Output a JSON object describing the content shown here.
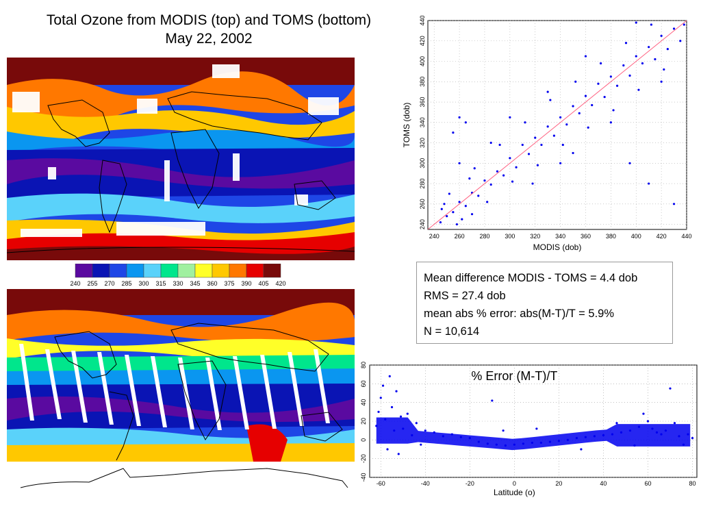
{
  "title": {
    "line1": "Total Ozone from MODIS (top) and TOMS (bottom)",
    "line2": "May 22, 2002"
  },
  "colorbar": {
    "ticks": [
      "240",
      "255",
      "270",
      "285",
      "300",
      "315",
      "330",
      "345",
      "360",
      "375",
      "390",
      "405",
      "420"
    ],
    "colors": [
      "#5a0aa0",
      "#0a14b4",
      "#1e46e6",
      "#0a96f0",
      "#5ad2fa",
      "#00e68c",
      "#a0f0a0",
      "#ffff28",
      "#ffc800",
      "#ff7800",
      "#e60000",
      "#780a0a"
    ]
  },
  "stats": {
    "line1": "Mean difference MODIS - TOMS = 4.4 dob",
    "line2": "RMS = 27.4 dob",
    "line3": "mean abs % error: abs(M-T)/T = 5.9%",
    "line4": "N = 10,614"
  },
  "chart_data": [
    {
      "type": "scatter",
      "title": "",
      "xlabel": "MODIS (dob)",
      "ylabel": "TOMS (dob)",
      "xlim": [
        235,
        440
      ],
      "ylim": [
        235,
        440
      ],
      "xticks": [
        240,
        260,
        280,
        300,
        320,
        340,
        360,
        380,
        400,
        420,
        440
      ],
      "yticks": [
        240,
        260,
        280,
        300,
        320,
        340,
        360,
        380,
        400,
        420,
        440
      ],
      "grid": true,
      "color": "#0000ee",
      "fit_line_color": "#ff6080",
      "points": [
        [
          245,
          242
        ],
        [
          250,
          248
        ],
        [
          255,
          252
        ],
        [
          260,
          262
        ],
        [
          265,
          258
        ],
        [
          270,
          271
        ],
        [
          275,
          268
        ],
        [
          280,
          283
        ],
        [
          285,
          279
        ],
        [
          290,
          292
        ],
        [
          295,
          288
        ],
        [
          300,
          305
        ],
        [
          305,
          296
        ],
        [
          310,
          318
        ],
        [
          315,
          309
        ],
        [
          320,
          325
        ],
        [
          325,
          318
        ],
        [
          330,
          336
        ],
        [
          335,
          327
        ],
        [
          340,
          345
        ],
        [
          345,
          338
        ],
        [
          350,
          356
        ],
        [
          355,
          349
        ],
        [
          360,
          366
        ],
        [
          365,
          357
        ],
        [
          370,
          378
        ],
        [
          375,
          365
        ],
        [
          380,
          385
        ],
        [
          385,
          376
        ],
        [
          390,
          396
        ],
        [
          395,
          386
        ],
        [
          400,
          405
        ],
        [
          405,
          398
        ],
        [
          410,
          414
        ],
        [
          415,
          402
        ],
        [
          420,
          425
        ],
        [
          425,
          412
        ],
        [
          430,
          432
        ],
        [
          435,
          420
        ],
        [
          438,
          436
        ],
        [
          252,
          270
        ],
        [
          262,
          245
        ],
        [
          272,
          295
        ],
        [
          282,
          262
        ],
        [
          292,
          318
        ],
        [
          302,
          282
        ],
        [
          312,
          340
        ],
        [
          322,
          298
        ],
        [
          332,
          362
        ],
        [
          342,
          318
        ],
        [
          352,
          380
        ],
        [
          362,
          335
        ],
        [
          372,
          398
        ],
        [
          382,
          352
        ],
        [
          392,
          418
        ],
        [
          402,
          372
        ],
        [
          412,
          436
        ],
        [
          422,
          392
        ],
        [
          300,
          345
        ],
        [
          318,
          280
        ],
        [
          260,
          300
        ],
        [
          270,
          250
        ],
        [
          340,
          300
        ],
        [
          360,
          405
        ],
        [
          380,
          340
        ],
        [
          400,
          438
        ],
        [
          420,
          380
        ],
        [
          285,
          320
        ],
        [
          330,
          370
        ],
        [
          350,
          310
        ],
        [
          430,
          260
        ],
        [
          410,
          280
        ],
        [
          395,
          300
        ],
        [
          265,
          340
        ],
        [
          260,
          345
        ],
        [
          255,
          330
        ],
        [
          248,
          260
        ],
        [
          246,
          255
        ],
        [
          258,
          240
        ],
        [
          268,
          285
        ]
      ]
    },
    {
      "type": "scatter",
      "title": "% Error (M-T)/T",
      "xlabel": "Latitude (o)",
      "ylabel": "",
      "xlim": [
        -65,
        82
      ],
      "ylim": [
        -40,
        80
      ],
      "xticks": [
        -60,
        -40,
        -20,
        0,
        20,
        40,
        60,
        80
      ],
      "yticks": [
        -40,
        -20,
        0,
        20,
        40,
        60,
        80
      ],
      "grid": true,
      "color": "#0000ee",
      "points": [
        [
          -62,
          15
        ],
        [
          -61,
          30
        ],
        [
          -60,
          45
        ],
        [
          -59,
          58
        ],
        [
          -58,
          22
        ],
        [
          -57,
          -10
        ],
        [
          -56,
          68
        ],
        [
          -55,
          35
        ],
        [
          -54,
          10
        ],
        [
          -53,
          52
        ],
        [
          -52,
          -15
        ],
        [
          -51,
          25
        ],
        [
          -50,
          12
        ],
        [
          -48,
          28
        ],
        [
          -46,
          5
        ],
        [
          -44,
          18
        ],
        [
          -42,
          -5
        ],
        [
          -40,
          10
        ],
        [
          -36,
          8
        ],
        [
          -32,
          4
        ],
        [
          -28,
          6
        ],
        [
          -24,
          3
        ],
        [
          -20,
          2
        ],
        [
          -16,
          -2
        ],
        [
          -12,
          -4
        ],
        [
          -8,
          -5
        ],
        [
          -4,
          -6
        ],
        [
          0,
          -5
        ],
        [
          4,
          -4
        ],
        [
          8,
          -3
        ],
        [
          12,
          -3
        ],
        [
          16,
          -2
        ],
        [
          20,
          -1
        ],
        [
          24,
          0
        ],
        [
          28,
          2
        ],
        [
          32,
          3
        ],
        [
          36,
          4
        ],
        [
          40,
          5
        ],
        [
          44,
          6
        ],
        [
          48,
          8
        ],
        [
          52,
          10
        ],
        [
          56,
          14
        ],
        [
          58,
          28
        ],
        [
          60,
          20
        ],
        [
          62,
          12
        ],
        [
          64,
          8
        ],
        [
          66,
          6
        ],
        [
          68,
          10
        ],
        [
          70,
          55
        ],
        [
          72,
          18
        ],
        [
          74,
          4
        ],
        [
          76,
          -5
        ],
        [
          78,
          6
        ],
        [
          80,
          2
        ],
        [
          -10,
          42
        ],
        [
          -5,
          10
        ],
        [
          10,
          12
        ],
        [
          30,
          -10
        ],
        [
          46,
          18
        ],
        [
          54,
          -6
        ]
      ]
    }
  ]
}
